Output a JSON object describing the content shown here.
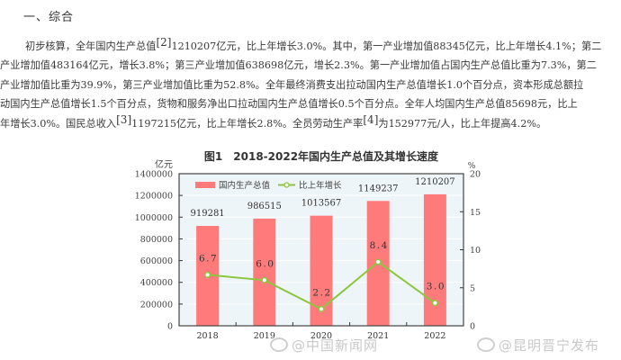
{
  "section": {
    "title": "一、综合"
  },
  "paragraph": {
    "lines": [
      {
        "text_a": "初步核算，全年国内生产总值",
        "sup": "[2]",
        "text_b": "1210207亿元，比上年增长3.0%。其中，第一产业增加值88345亿元，比上年增长4.1%；第二"
      },
      {
        "text_a": "产业增加值483164亿元，增长3.8%；第三产业增加值638698亿元，增长2.3%。第一产业增加值占国内生产总值比重为7.3%，第二",
        "sup": "",
        "text_b": ""
      },
      {
        "text_a": "产业增加值比重为39.9%，第三产业增加值比重为52.8%。全年最终消费支出拉动国内生产总值增长1.0个百分点，资本形成总额拉",
        "sup": "",
        "text_b": ""
      },
      {
        "text_a": "动国内生产总值增长1.5个百分点，货物和服务净出口拉动国内生产总值增长0.5个百分点。全年人均国内生产总值85698元，比上",
        "sup": "",
        "text_b": ""
      },
      {
        "text_a": "年增长3.0%。国民总收入",
        "sup": "[3]",
        "text_b": "1197215亿元，比上年增长2.8%。全员劳动生产率",
        "sup2": "[4]",
        "text_c": "为152977元/人，比上年提高4.2%。"
      }
    ]
  },
  "chart_data": {
    "type": "bar",
    "title": "图1　2018-2022年国内生产总值及其增长速度",
    "categories": [
      "2018",
      "2019",
      "2020",
      "2021",
      "2022"
    ],
    "series": [
      {
        "name": "国内生产总值",
        "type": "bar",
        "axis": "left",
        "color": "#ff7b7b",
        "values": [
          919281,
          986515,
          1013567,
          1149237,
          1210207
        ],
        "labels": [
          "919281",
          "986515",
          "1013567",
          "1149237",
          "1210207"
        ]
      },
      {
        "name": "比上年增长",
        "type": "line",
        "axis": "right",
        "color": "#8cc63f",
        "values": [
          6.7,
          6.0,
          2.2,
          8.4,
          3.0
        ],
        "labels": [
          "6.7",
          "6.0",
          "2.2",
          "8.4",
          "3.0"
        ]
      }
    ],
    "ylabel_left": "亿元",
    "ylabel_right": "%",
    "ylim_left": [
      0,
      1400000
    ],
    "ylim_right": [
      0,
      20
    ],
    "yticks_left": [
      "0",
      "200000",
      "400000",
      "600000",
      "800000",
      "1000000",
      "1200000",
      "1400000"
    ],
    "yticks_right": [
      "0",
      "5",
      "10",
      "15",
      "20"
    ],
    "grid": true,
    "legend_position": "top-left inside",
    "plot_background": "#eef5f9"
  },
  "watermarks": [
    "@中国新闻网",
    "@昆明晋宁发布"
  ]
}
